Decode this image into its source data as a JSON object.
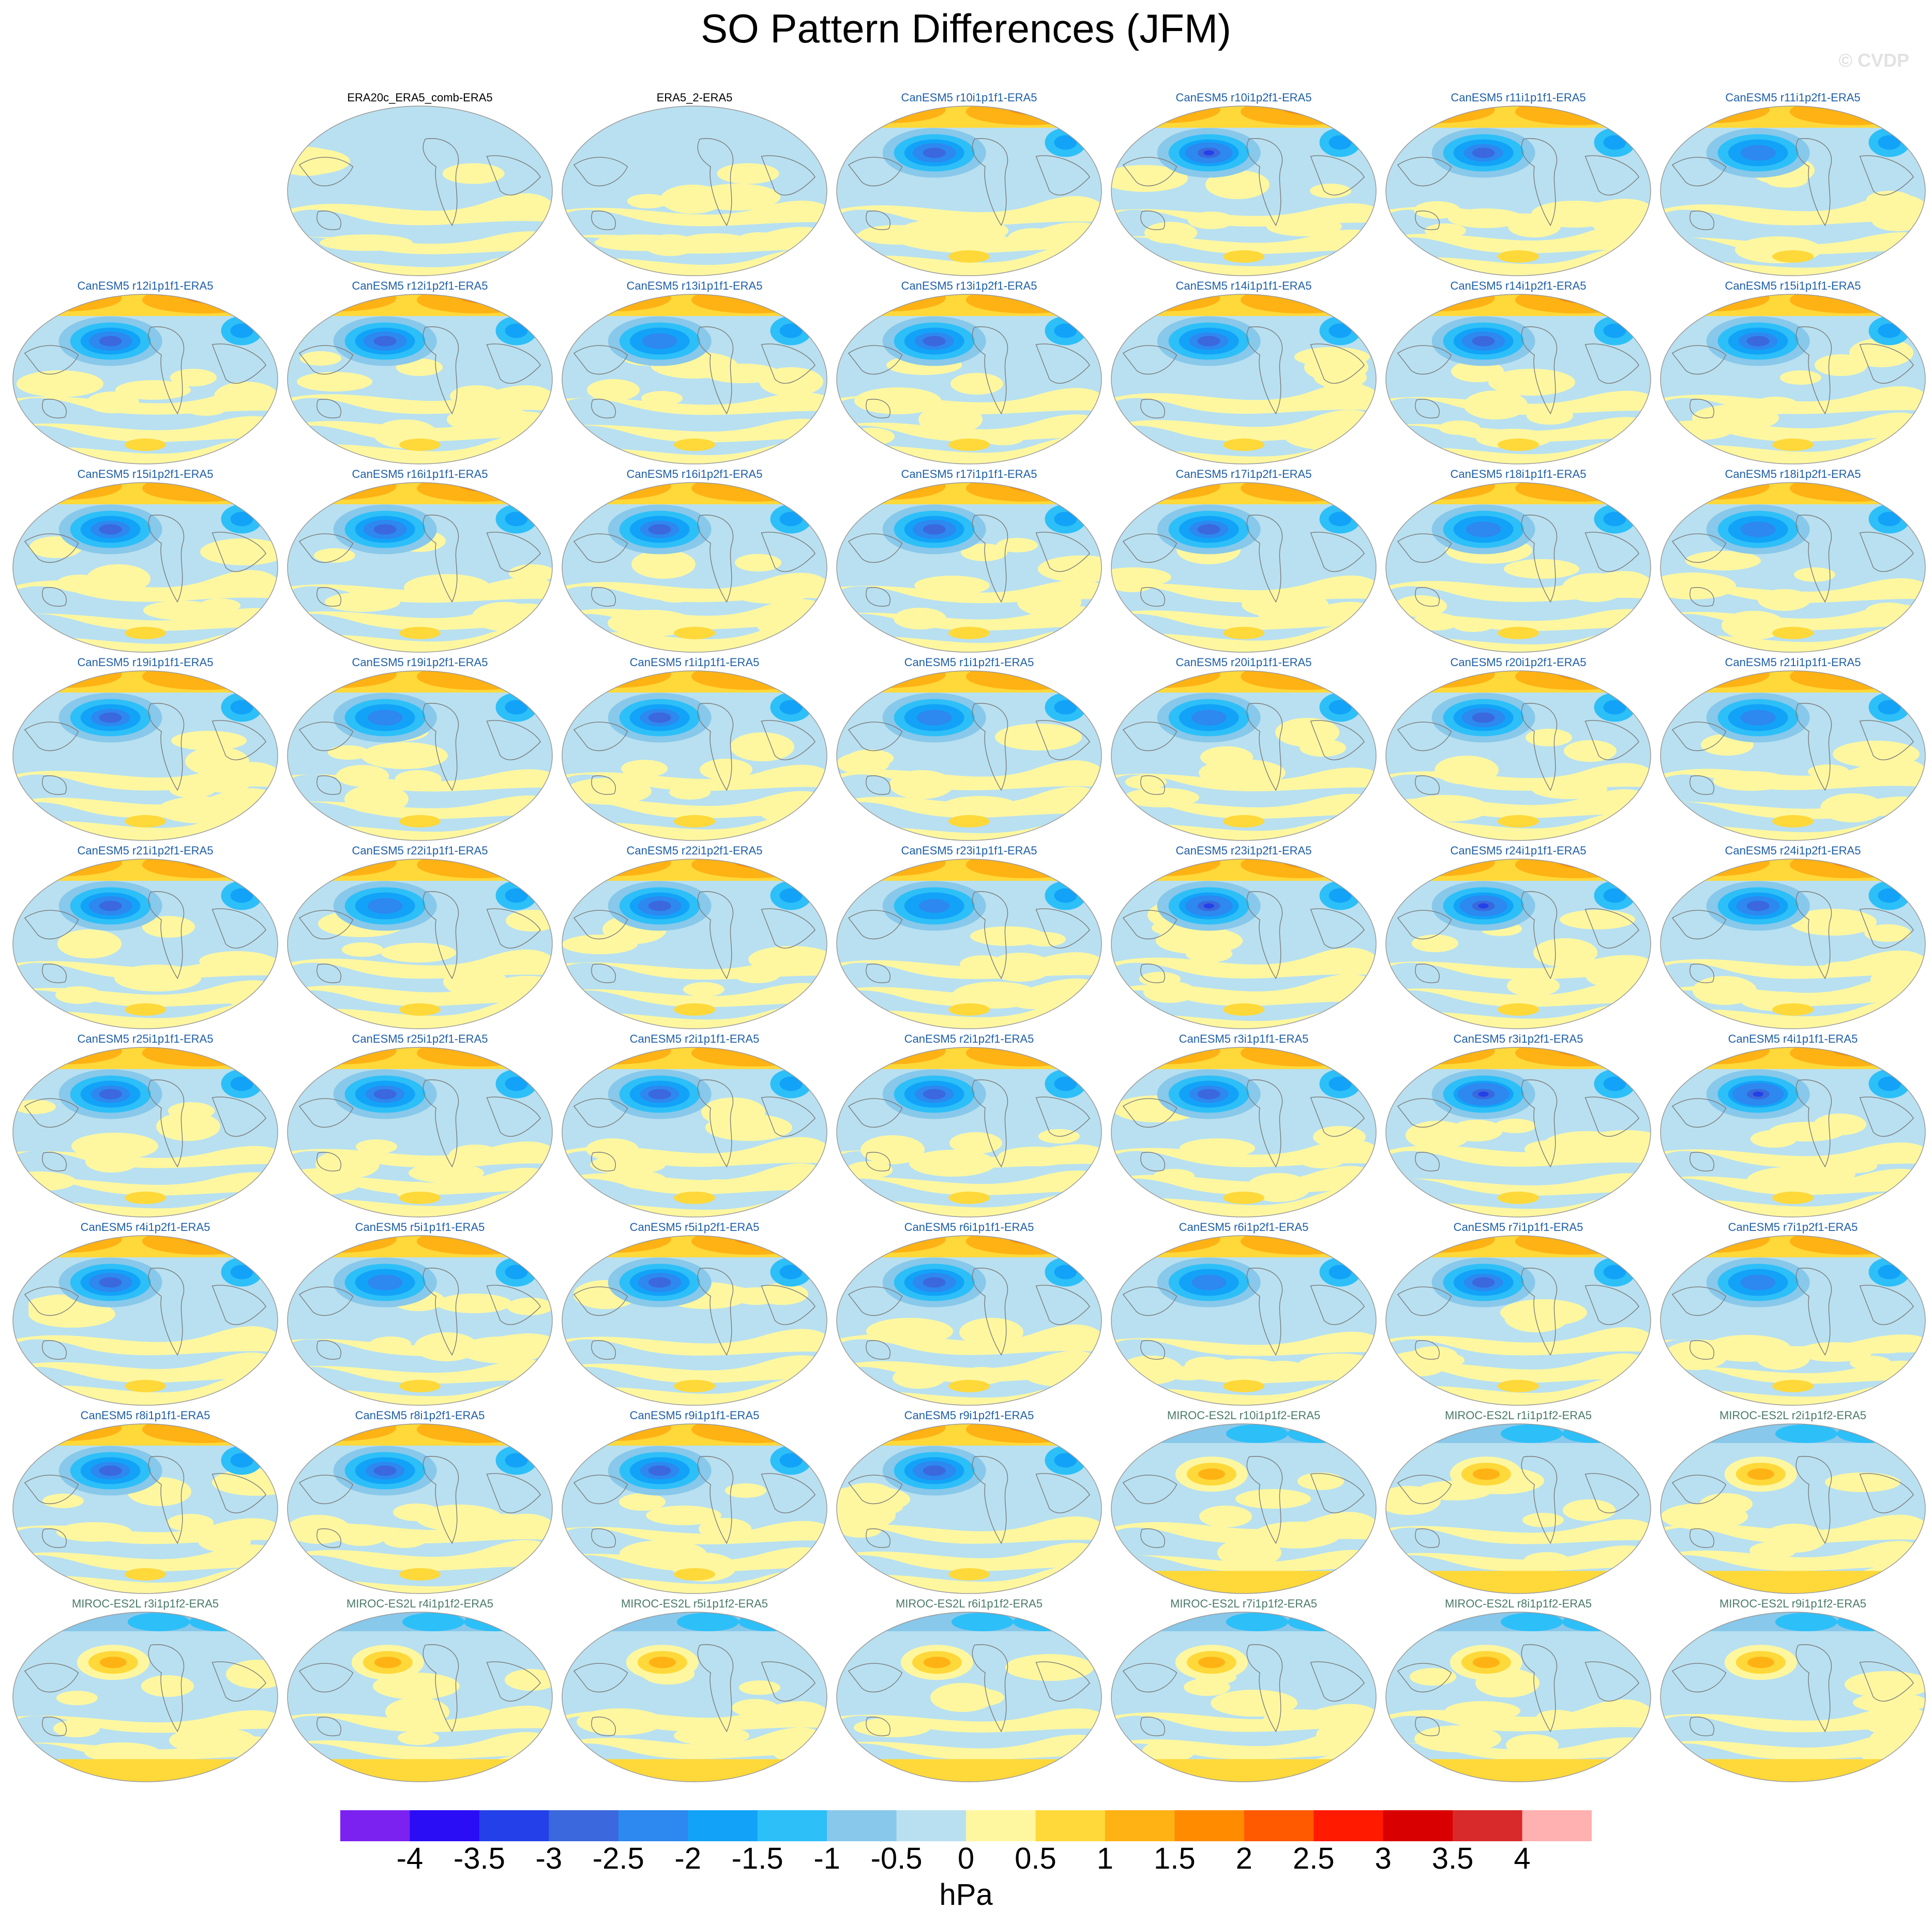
{
  "title": "SO Pattern Differences (JFM)",
  "watermark": "© CVDP",
  "units": "hPa",
  "colorbar": {
    "ticks": [
      "-4",
      "-3.5",
      "-3",
      "-2.5",
      "-2",
      "-1.5",
      "-1",
      "-0.5",
      "0",
      "0.5",
      "1",
      "1.5",
      "2",
      "2.5",
      "3",
      "3.5",
      "4"
    ],
    "colors": [
      "#7b22f0",
      "#2a0cf5",
      "#2440e8",
      "#3b68dc",
      "#2d88f0",
      "#12a3f8",
      "#2dbff8",
      "#88c8ea",
      "#b8e0f0",
      "#fff7a0",
      "#ffd83a",
      "#ffb214",
      "#ff8c00",
      "#ff5a00",
      "#ff1a00",
      "#d80000",
      "#d82a2a",
      "#ffb0b0"
    ]
  },
  "panels": [
    {
      "label": "ERA20c_ERA5_comb-ERA5",
      "group": "obs",
      "strength": 0.2
    },
    {
      "label": "ERA5_2-ERA5",
      "group": "obs",
      "strength": 0.1
    },
    {
      "label": "CanESM5 r10i1p1f1-ERA5",
      "group": "can",
      "strength": 0.8
    },
    {
      "label": "CanESM5 r10i1p2f1-ERA5",
      "group": "can",
      "strength": 0.9
    },
    {
      "label": "CanESM5 r11i1p1f1-ERA5",
      "group": "can",
      "strength": 0.7
    },
    {
      "label": "CanESM5 r11i1p2f1-ERA5",
      "group": "can",
      "strength": 0.6
    },
    {
      "label": "CanESM5 r12i1p1f1-ERA5",
      "group": "can",
      "strength": 0.8
    },
    {
      "label": "CanESM5 r12i1p2f1-ERA5",
      "group": "can",
      "strength": 0.8
    },
    {
      "label": "CanESM5 r13i1p1f1-ERA5",
      "group": "can",
      "strength": 0.6
    },
    {
      "label": "CanESM5 r13i1p2f1-ERA5",
      "group": "can",
      "strength": 0.7
    },
    {
      "label": "CanESM5 r14i1p1f1-ERA5",
      "group": "can",
      "strength": 0.7
    },
    {
      "label": "CanESM5 r14i1p2f1-ERA5",
      "group": "can",
      "strength": 0.8
    },
    {
      "label": "CanESM5 r15i1p1f1-ERA5",
      "group": "can",
      "strength": 0.7
    },
    {
      "label": "CanESM5 r15i1p2f1-ERA5",
      "group": "can",
      "strength": 0.7
    },
    {
      "label": "CanESM5 r16i1p1f1-ERA5",
      "group": "can",
      "strength": 0.8
    },
    {
      "label": "CanESM5 r16i1p2f1-ERA5",
      "group": "can",
      "strength": 0.7
    },
    {
      "label": "CanESM5 r17i1p1f1-ERA5",
      "group": "can",
      "strength": 0.8
    },
    {
      "label": "CanESM5 r17i1p2f1-ERA5",
      "group": "can",
      "strength": 0.7
    },
    {
      "label": "CanESM5 r18i1p1f1-ERA5",
      "group": "can",
      "strength": 0.6
    },
    {
      "label": "CanESM5 r18i1p2f1-ERA5",
      "group": "can",
      "strength": 0.6
    },
    {
      "label": "CanESM5 r19i1p1f1-ERA5",
      "group": "can",
      "strength": 0.7
    },
    {
      "label": "CanESM5 r19i1p2f1-ERA5",
      "group": "can",
      "strength": 0.6
    },
    {
      "label": "CanESM5 r1i1p1f1-ERA5",
      "group": "can",
      "strength": 0.7
    },
    {
      "label": "CanESM5 r1i1p2f1-ERA5",
      "group": "can",
      "strength": 0.6
    },
    {
      "label": "CanESM5 r20i1p1f1-ERA5",
      "group": "can",
      "strength": 0.6
    },
    {
      "label": "CanESM5 r20i1p2f1-ERA5",
      "group": "can",
      "strength": 0.8
    },
    {
      "label": "CanESM5 r21i1p1f1-ERA5",
      "group": "can",
      "strength": 0.6
    },
    {
      "label": "CanESM5 r21i1p2f1-ERA5",
      "group": "can",
      "strength": 0.8
    },
    {
      "label": "CanESM5 r22i1p1f1-ERA5",
      "group": "can",
      "strength": 0.6
    },
    {
      "label": "CanESM5 r22i1p2f1-ERA5",
      "group": "can",
      "strength": 0.8
    },
    {
      "label": "CanESM5 r23i1p1f1-ERA5",
      "group": "can",
      "strength": 0.5
    },
    {
      "label": "CanESM5 r23i1p2f1-ERA5",
      "group": "can",
      "strength": 0.9
    },
    {
      "label": "CanESM5 r24i1p1f1-ERA5",
      "group": "can",
      "strength": 0.9
    },
    {
      "label": "CanESM5 r24i1p2f1-ERA5",
      "group": "can",
      "strength": 0.8
    },
    {
      "label": "CanESM5 r25i1p1f1-ERA5",
      "group": "can",
      "strength": 0.7
    },
    {
      "label": "CanESM5 r25i1p2f1-ERA5",
      "group": "can",
      "strength": 0.7
    },
    {
      "label": "CanESM5 r2i1p1f1-ERA5",
      "group": "can",
      "strength": 0.7
    },
    {
      "label": "CanESM5 r2i1p2f1-ERA5",
      "group": "can",
      "strength": 0.7
    },
    {
      "label": "CanESM5 r3i1p1f1-ERA5",
      "group": "can",
      "strength": 0.7
    },
    {
      "label": "CanESM5 r3i1p2f1-ERA5",
      "group": "can",
      "strength": 1.0
    },
    {
      "label": "CanESM5 r4i1p1f1-ERA5",
      "group": "can",
      "strength": 1.0
    },
    {
      "label": "CanESM5 r4i1p2f1-ERA5",
      "group": "can",
      "strength": 0.8
    },
    {
      "label": "CanESM5 r5i1p1f1-ERA5",
      "group": "can",
      "strength": 0.6
    },
    {
      "label": "CanESM5 r5i1p2f1-ERA5",
      "group": "can",
      "strength": 0.8
    },
    {
      "label": "CanESM5 r6i1p1f1-ERA5",
      "group": "can",
      "strength": 0.8
    },
    {
      "label": "CanESM5 r6i1p2f1-ERA5",
      "group": "can",
      "strength": 0.6
    },
    {
      "label": "CanESM5 r7i1p1f1-ERA5",
      "group": "can",
      "strength": 0.7
    },
    {
      "label": "CanESM5 r7i1p2f1-ERA5",
      "group": "can",
      "strength": 0.6
    },
    {
      "label": "CanESM5 r8i1p1f1-ERA5",
      "group": "can",
      "strength": 0.7
    },
    {
      "label": "CanESM5 r8i1p2f1-ERA5",
      "group": "can",
      "strength": 0.7
    },
    {
      "label": "CanESM5 r9i1p1f1-ERA5",
      "group": "can",
      "strength": 0.7
    },
    {
      "label": "CanESM5 r9i1p2f1-ERA5",
      "group": "can",
      "strength": 0.8
    },
    {
      "label": "MIROC-ES2L r10i1p1f2-ERA5",
      "group": "miroc",
      "strength": 0.5
    },
    {
      "label": "MIROC-ES2L r1i1p1f2-ERA5",
      "group": "miroc",
      "strength": 0.5
    },
    {
      "label": "MIROC-ES2L r2i1p1f2-ERA5",
      "group": "miroc",
      "strength": 0.5
    },
    {
      "label": "MIROC-ES2L r3i1p1f2-ERA5",
      "group": "miroc",
      "strength": 0.4
    },
    {
      "label": "MIROC-ES2L r4i1p1f2-ERA5",
      "group": "miroc",
      "strength": 0.5
    },
    {
      "label": "MIROC-ES2L r5i1p1f2-ERA5",
      "group": "miroc",
      "strength": 0.5
    },
    {
      "label": "MIROC-ES2L r6i1p1f2-ERA5",
      "group": "miroc",
      "strength": 0.5
    },
    {
      "label": "MIROC-ES2L r7i1p1f2-ERA5",
      "group": "miroc",
      "strength": 0.5
    },
    {
      "label": "MIROC-ES2L r8i1p1f2-ERA5",
      "group": "miroc",
      "strength": 0.4
    },
    {
      "label": "MIROC-ES2L r9i1p1f2-ERA5",
      "group": "miroc",
      "strength": 0.5
    }
  ]
}
